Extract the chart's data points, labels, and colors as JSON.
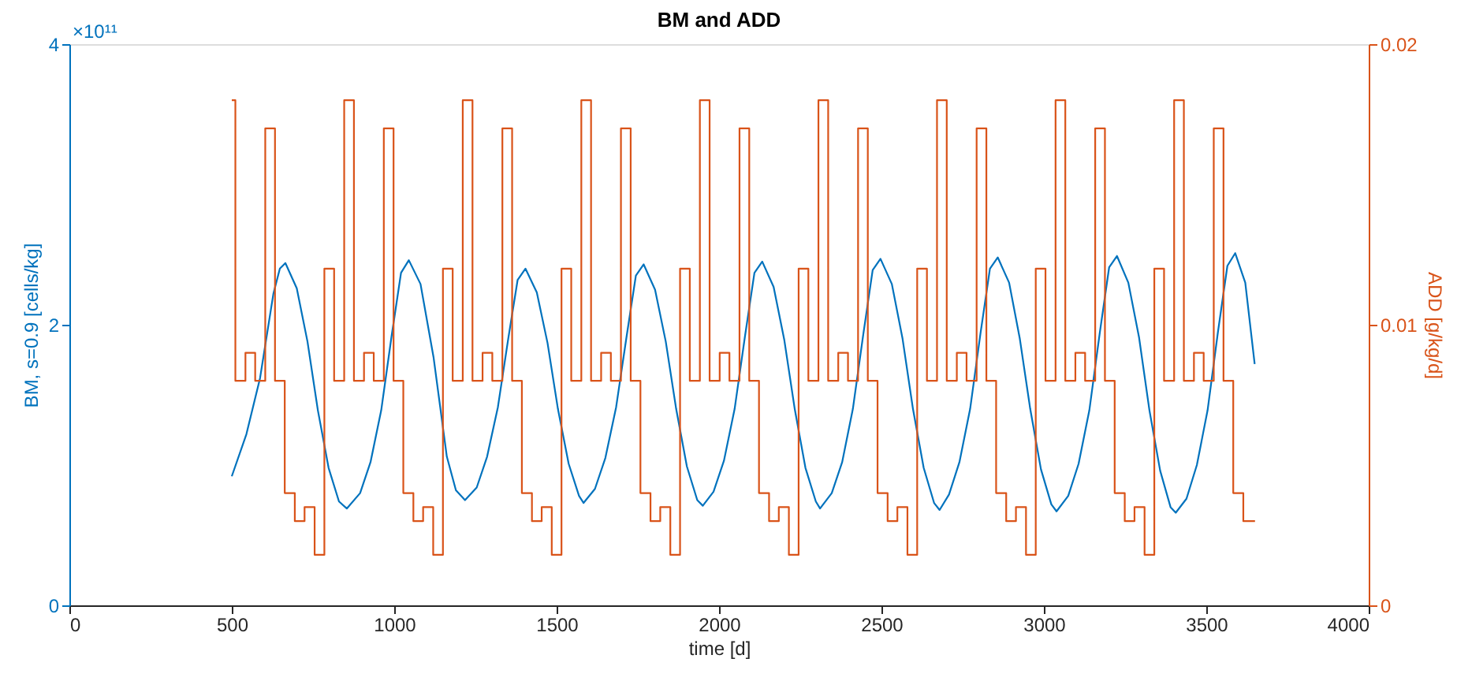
{
  "chart_data": {
    "type": "line",
    "title": "BM and ADD",
    "xlabel": "time [d]",
    "ylabel": "BM, s=0.9 [cells/kg]",
    "y2label": "ADD [g/kg/d]",
    "annotations": [
      "×10¹¹"
    ],
    "xlim": [
      0,
      4000
    ],
    "xticks": [
      0,
      500,
      1000,
      1500,
      2000,
      2500,
      3000,
      3500,
      4000
    ],
    "ylim": [
      0,
      4
    ],
    "yticks": [
      0,
      2,
      4
    ],
    "y2lim": [
      0,
      0.02
    ],
    "y2ticks": [
      0,
      0.01,
      0.02
    ],
    "series": [
      {
        "type": "line",
        "color": "#0072bd",
        "x": [
          500,
          545,
          587,
          628,
          648,
          665,
          700,
          733,
          765,
          798,
          830,
          854,
          895,
          927,
          960,
          992,
          1021,
          1045,
          1081,
          1121,
          1162,
          1190,
          1218,
          1254,
          1286,
          1319,
          1351,
          1380,
          1404,
          1439,
          1472,
          1504,
          1537,
          1569,
          1583,
          1618,
          1650,
          1683,
          1715,
          1744,
          1768,
          1803,
          1836,
          1868,
          1901,
          1933,
          1950,
          1983,
          2015,
          2048,
          2080,
          2109,
          2133,
          2168,
          2201,
          2233,
          2266,
          2298,
          2311,
          2347,
          2379,
          2412,
          2444,
          2473,
          2497,
          2532,
          2565,
          2597,
          2630,
          2662,
          2679,
          2708,
          2740,
          2773,
          2805,
          2834,
          2858,
          2893,
          2926,
          2958,
          2991,
          3023,
          3039,
          3075,
          3107,
          3140,
          3172,
          3201,
          3225,
          3260,
          3293,
          3325,
          3358,
          3390,
          3406,
          3439,
          3471,
          3504,
          3536,
          3565,
          3589,
          3620,
          3649
        ],
        "values": [
          0.92,
          1.22,
          1.62,
          2.22,
          2.4,
          2.44,
          2.26,
          1.88,
          1.39,
          0.98,
          0.74,
          0.69,
          0.8,
          1.02,
          1.39,
          1.92,
          2.37,
          2.46,
          2.29,
          1.77,
          1.06,
          0.82,
          0.75,
          0.84,
          1.06,
          1.41,
          1.9,
          2.32,
          2.4,
          2.23,
          1.87,
          1.4,
          1.01,
          0.78,
          0.73,
          0.83,
          1.05,
          1.41,
          1.91,
          2.35,
          2.43,
          2.25,
          1.88,
          1.4,
          0.99,
          0.75,
          0.71,
          0.81,
          1.03,
          1.4,
          1.92,
          2.37,
          2.45,
          2.27,
          1.89,
          1.4,
          0.98,
          0.74,
          0.69,
          0.8,
          1.02,
          1.4,
          1.93,
          2.39,
          2.47,
          2.29,
          1.9,
          1.4,
          0.98,
          0.73,
          0.68,
          0.79,
          1.02,
          1.4,
          1.94,
          2.4,
          2.48,
          2.3,
          1.9,
          1.4,
          0.97,
          0.72,
          0.67,
          0.78,
          1.01,
          1.39,
          1.94,
          2.41,
          2.49,
          2.3,
          1.91,
          1.39,
          0.96,
          0.7,
          0.66,
          0.76,
          1.0,
          1.39,
          1.95,
          2.42,
          2.51,
          2.3,
          1.72
        ]
      },
      {
        "type": "step",
        "axis": "y2",
        "color": "#d95319",
        "x": [
          500,
          511,
          542,
          572,
          603,
          633,
          663,
          694,
          724,
          755,
          785,
          815,
          846,
          876,
          907,
          937,
          968,
          998,
          1028,
          1059,
          1089,
          1120,
          1150,
          1180,
          1211,
          1241,
          1272,
          1302,
          1333,
          1363,
          1393,
          1424,
          1454,
          1485,
          1515,
          1545,
          1576,
          1606,
          1637,
          1667,
          1698,
          1728,
          1758,
          1789,
          1819,
          1850,
          1880,
          1910,
          1941,
          1971,
          2002,
          2032,
          2063,
          2093,
          2123,
          2154,
          2184,
          2215,
          2245,
          2275,
          2306,
          2336,
          2367,
          2397,
          2428,
          2458,
          2488,
          2519,
          2549,
          2580,
          2610,
          2640,
          2671,
          2701,
          2732,
          2762,
          2793,
          2823,
          2853,
          2884,
          2914,
          2945,
          2975,
          3005,
          3036,
          3066,
          3097,
          3127,
          3158,
          3188,
          3218,
          3249,
          3279,
          3310,
          3340,
          3370,
          3401,
          3431,
          3462,
          3492,
          3523,
          3553,
          3583,
          3614,
          3650
        ],
        "values": [
          0.018,
          0.008,
          0.009,
          0.008,
          0.017,
          0.008,
          0.004,
          0.003,
          0.0035,
          0.0018,
          0.012,
          0.008,
          0.018,
          0.008,
          0.009,
          0.008,
          0.017,
          0.008,
          0.004,
          0.003,
          0.0035,
          0.0018,
          0.012,
          0.008,
          0.018,
          0.008,
          0.009,
          0.008,
          0.017,
          0.008,
          0.004,
          0.003,
          0.0035,
          0.0018,
          0.012,
          0.008,
          0.018,
          0.008,
          0.009,
          0.008,
          0.017,
          0.008,
          0.004,
          0.003,
          0.0035,
          0.0018,
          0.012,
          0.008,
          0.018,
          0.008,
          0.009,
          0.008,
          0.017,
          0.008,
          0.004,
          0.003,
          0.0035,
          0.0018,
          0.012,
          0.008,
          0.018,
          0.008,
          0.009,
          0.008,
          0.017,
          0.008,
          0.004,
          0.003,
          0.0035,
          0.0018,
          0.012,
          0.008,
          0.018,
          0.008,
          0.009,
          0.008,
          0.017,
          0.008,
          0.004,
          0.003,
          0.0035,
          0.0018,
          0.012,
          0.008,
          0.018,
          0.008,
          0.009,
          0.008,
          0.017,
          0.008,
          0.004,
          0.003,
          0.0035,
          0.0018,
          0.012,
          0.008,
          0.018,
          0.008,
          0.009,
          0.008,
          0.017,
          0.008,
          0.004,
          0.003,
          0.003
        ]
      }
    ]
  }
}
